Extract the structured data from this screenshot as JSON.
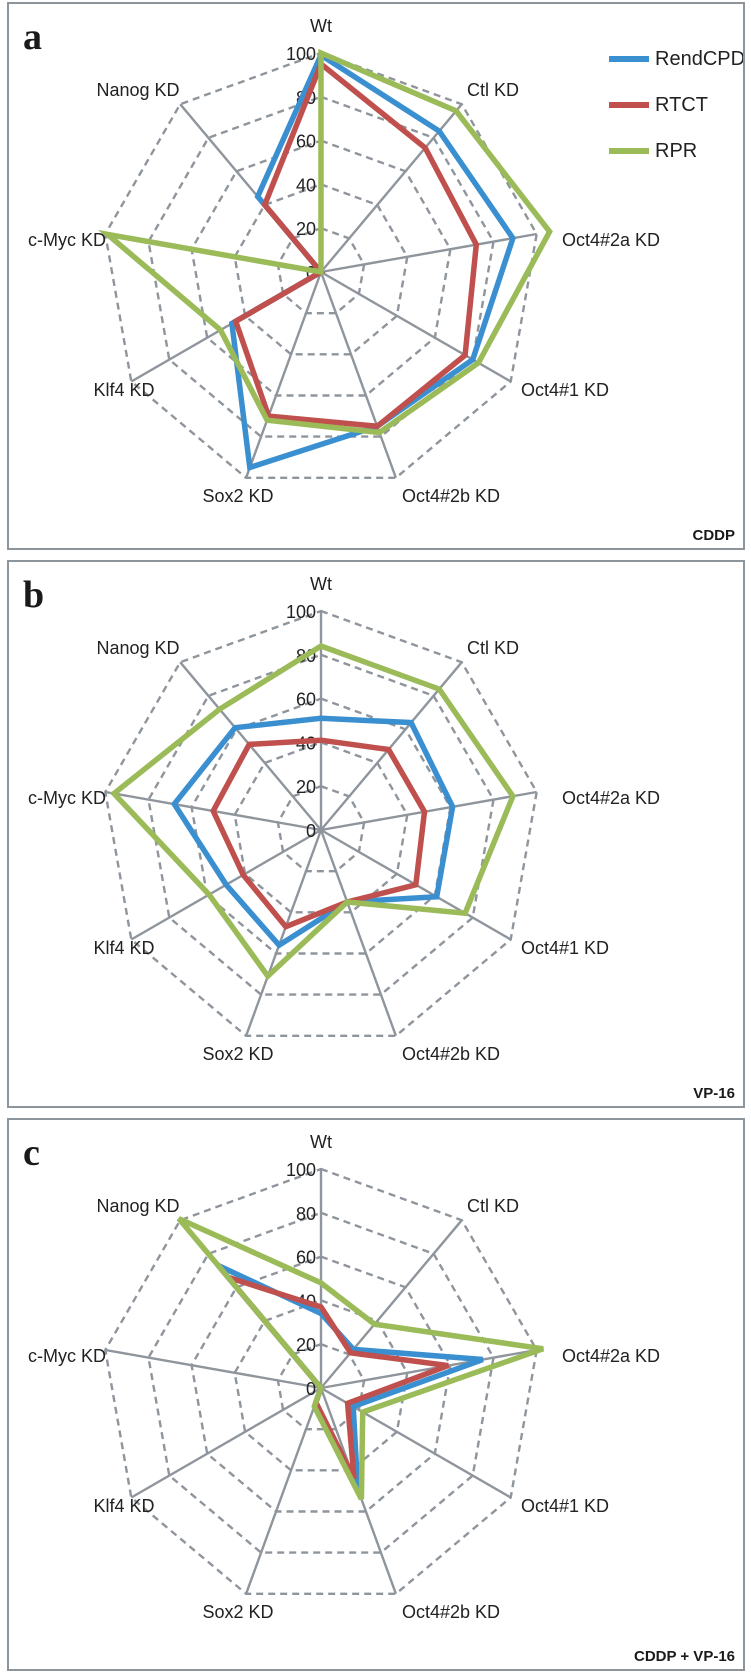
{
  "axes": [
    "Wt",
    "Ctl KD",
    "Oct4#2a KD",
    "Oct4#1 KD",
    "Oct4#2b KD",
    "Sox2 KD",
    "Klf4 KD",
    "c-Myc KD",
    "Nanog KD"
  ],
  "ticks": [
    "0",
    "20",
    "40",
    "60",
    "80",
    "100"
  ],
  "legend": [
    {
      "name": "RendCPD",
      "color": "#3a8fd0"
    },
    {
      "name": "RTCT",
      "color": "#c0504d"
    },
    {
      "name": "RPR",
      "color": "#9bbb59"
    }
  ],
  "panels": [
    {
      "letter": "a",
      "tag": "CDDP"
    },
    {
      "letter": "b",
      "tag": "VP-16"
    },
    {
      "letter": "c",
      "tag": "CDDP + VP-16"
    }
  ],
  "chart_data": [
    {
      "type": "radar",
      "categories": [
        "Wt",
        "Ctl KD",
        "Oct4#2a KD",
        "Oct4#1 KD",
        "Oct4#2b KD",
        "Sox2 KD",
        "Klf4 KD",
        "c-Myc KD",
        "Nanog KD"
      ],
      "rlim": [
        0,
        100
      ],
      "ticks": [
        0,
        20,
        40,
        60,
        80,
        100
      ],
      "series": [
        {
          "name": "RendCPD",
          "values": [
            99,
            84,
            89,
            80,
            75,
            95,
            47,
            0,
            45
          ]
        },
        {
          "name": "RTCT",
          "values": [
            95,
            74,
            72,
            76,
            75,
            70,
            45,
            0,
            40
          ]
        },
        {
          "name": "RPR",
          "values": [
            100,
            96,
            106,
            83,
            78,
            72,
            53,
            99,
            0
          ]
        }
      ]
    },
    {
      "type": "radar",
      "categories": [
        "Wt",
        "Ctl KD",
        "Oct4#2a KD",
        "Oct4#1 KD",
        "Oct4#2b KD",
        "Sox2 KD",
        "Klf4 KD",
        "c-Myc KD",
        "Nanog KD"
      ],
      "rlim": [
        0,
        100
      ],
      "ticks": [
        0,
        20,
        40,
        60,
        80,
        100
      ],
      "series": [
        {
          "name": "RendCPD",
          "values": [
            51,
            64,
            61,
            61,
            35,
            56,
            50,
            68,
            61
          ]
        },
        {
          "name": "RTCT",
          "values": [
            41,
            48,
            48,
            50,
            35,
            47,
            41,
            50,
            51
          ]
        },
        {
          "name": "RPR",
          "values": [
            84,
            84,
            89,
            76,
            35,
            71,
            59,
            96,
            72
          ]
        }
      ]
    },
    {
      "type": "radar",
      "categories": [
        "Wt",
        "Ctl KD",
        "Oct4#2a KD",
        "Oct4#1 KD",
        "Oct4#2b KD",
        "Sox2 KD",
        "Klf4 KD",
        "c-Myc KD",
        "Nanog KD"
      ],
      "rlim": [
        0,
        100
      ],
      "ticks": [
        0,
        20,
        40,
        60,
        80,
        100
      ],
      "series": [
        {
          "name": "RendCPD",
          "values": [
            34,
            23,
            75,
            17,
            49,
            7,
            0,
            0,
            73
          ]
        },
        {
          "name": "RTCT",
          "values": [
            37,
            21,
            59,
            14,
            44,
            7,
            0,
            0,
            66
          ]
        },
        {
          "name": "RPR",
          "values": [
            48,
            38,
            103,
            22,
            54,
            9,
            0,
            0,
            101
          ]
        }
      ]
    }
  ]
}
